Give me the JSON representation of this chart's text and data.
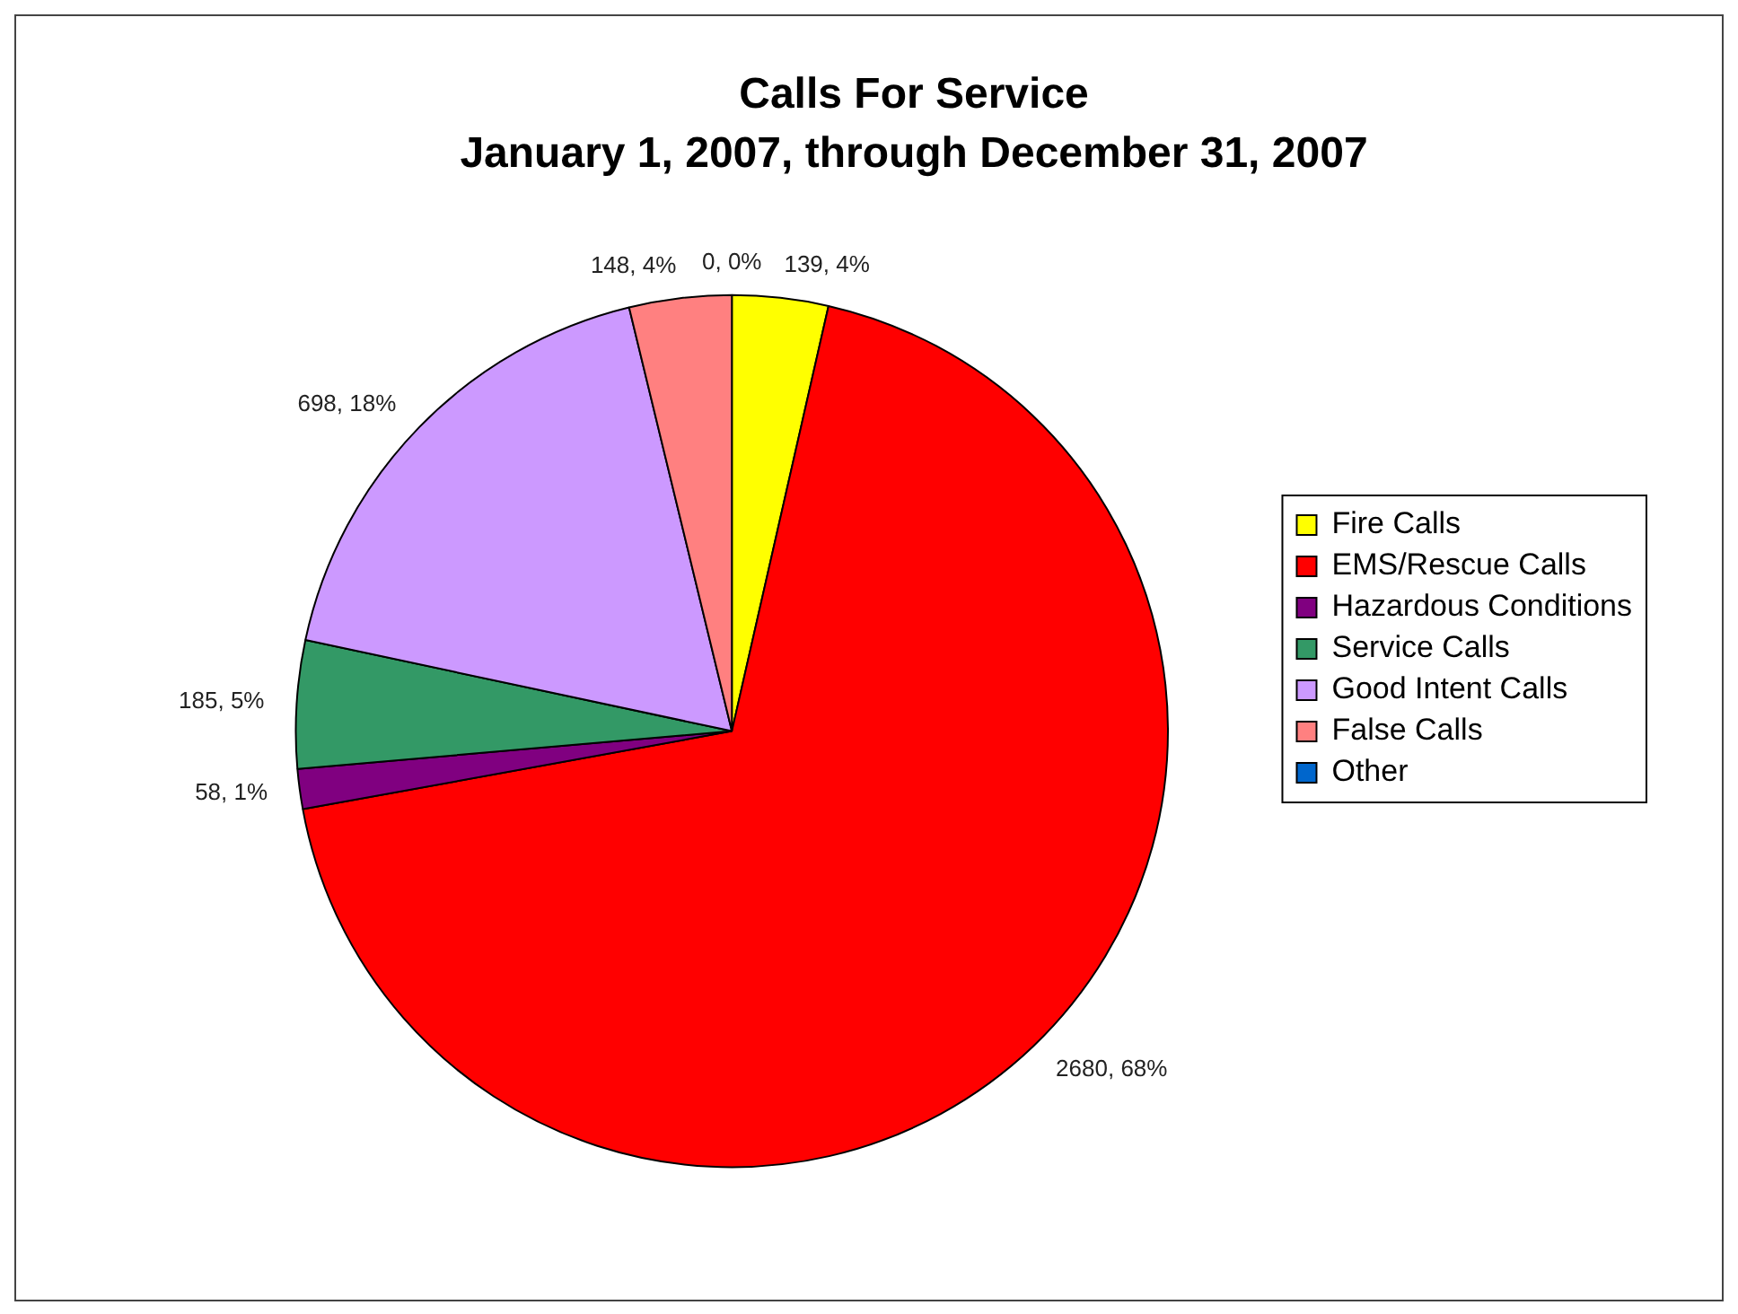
{
  "chart_data": {
    "type": "pie",
    "title": "Calls For Service",
    "subtitle": "January 1, 2007, through December 31, 2007",
    "categories": [
      "Fire Calls",
      "EMS/Rescue Calls",
      "Hazardous Conditions",
      "Service Calls",
      "Good Intent Calls",
      "False Calls",
      "Other"
    ],
    "values": [
      139,
      2680,
      58,
      185,
      698,
      148,
      0
    ],
    "colors": [
      "#ffff00",
      "#ff0000",
      "#800080",
      "#339966",
      "#cc99ff",
      "#ff8080",
      "#0066cc"
    ],
    "value_labels": [
      "139, 4%",
      "2680, 68%",
      "58, 1%",
      "185, 5%",
      "698, 18%",
      "148, 4%",
      "0, 0%"
    ],
    "legend": "right"
  }
}
